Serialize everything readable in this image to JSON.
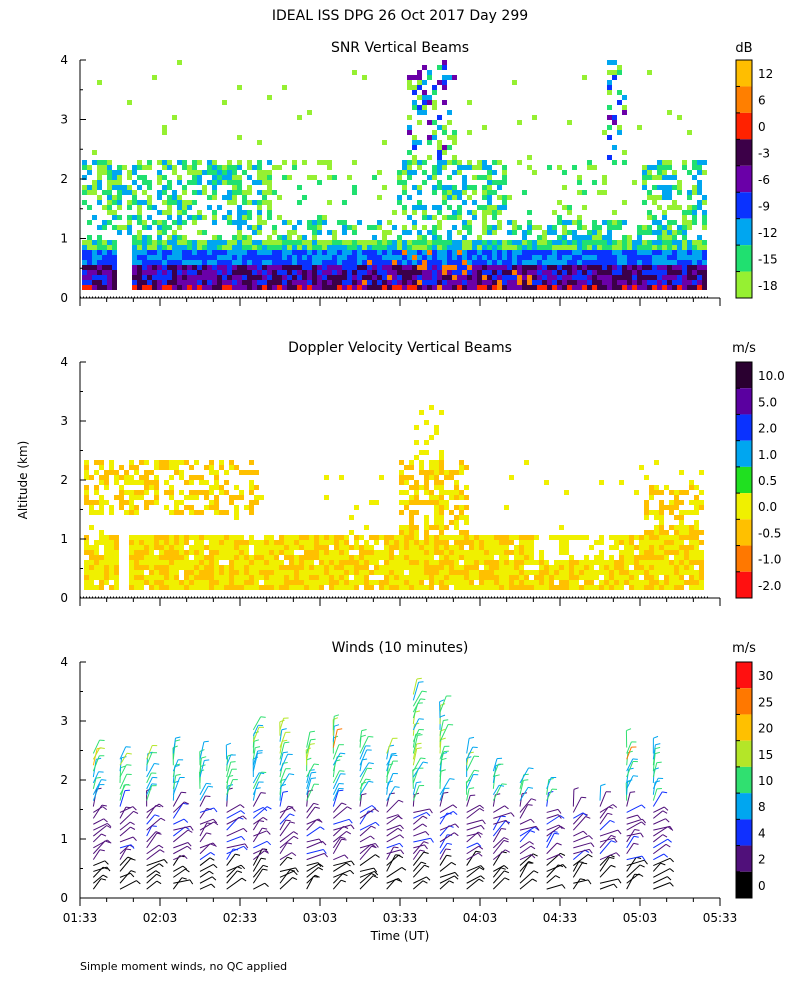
{
  "figure": {
    "title": "IDEAL ISS DPG  26 Oct 2017 Day 299",
    "ylabel": "Altitude (km)",
    "xlabel": "Time (UT)",
    "footnote": "Simple moment winds, no QC applied",
    "time_ticks": [
      "01:33",
      "02:03",
      "02:33",
      "03:03",
      "03:33",
      "04:03",
      "04:33",
      "05:03",
      "05:33"
    ],
    "altitude_ticks": [
      "0",
      "1",
      "2",
      "3",
      "4"
    ]
  },
  "chart_data": [
    {
      "type": "heatmap",
      "title": "SNR Vertical Beams",
      "units": "dB",
      "xlabel": "Time (UT)",
      "ylabel": "Altitude (km)",
      "xlim": [
        "01:33",
        "05:33"
      ],
      "ylim": [
        0,
        4
      ],
      "colorbar": {
        "labels": [
          "12",
          "6",
          "0",
          "-3",
          "-6",
          "-9",
          "-12",
          "-15",
          "-18"
        ],
        "colors": [
          "#ffbe00",
          "#ff7f00",
          "#ff2200",
          "#3c0048",
          "#6a00a8",
          "#0a32ff",
          "#00a6f0",
          "#20e070",
          "#96f032"
        ]
      },
      "features": [
        {
          "altitude_range_km": [
            0.1,
            0.9
          ],
          "description": "strong continuous boundary-layer echo"
        },
        {
          "altitude_range_km": [
            1.5,
            2.3
          ],
          "description": "patchy elevated layer"
        },
        {
          "altitude_range_km": [
            3.0,
            3.8
          ],
          "description": "isolated high echoes near 03:55 and 04:40"
        }
      ]
    },
    {
      "type": "heatmap",
      "title": "Doppler Velocity Vertical Beams",
      "units": "m/s",
      "xlabel": "Time (UT)",
      "ylabel": "Altitude (km)",
      "xlim": [
        "01:33",
        "05:33"
      ],
      "ylim": [
        0,
        4
      ],
      "colorbar": {
        "labels": [
          "10.0",
          "5.0",
          "2.0",
          "1.0",
          "0.5",
          "0.0",
          "-0.5",
          "-1.0",
          "-2.0"
        ],
        "colors": [
          "#2a0030",
          "#5a00a0",
          "#0a32ff",
          "#00a6f0",
          "#20e020",
          "#f0f000",
          "#ffc000",
          "#ff7800",
          "#ff1010"
        ]
      }
    },
    {
      "type": "wind_barbs",
      "title": "Winds (10 minutes)",
      "units": "m/s",
      "xlabel": "Time (UT)",
      "ylabel": "Altitude (km)",
      "xlim": [
        "01:33",
        "05:33"
      ],
      "ylim": [
        0,
        4
      ],
      "colorbar": {
        "labels": [
          "30",
          "25",
          "20",
          "15",
          "10",
          "8",
          "4",
          "2",
          "0"
        ],
        "colors": [
          "#ff1010",
          "#ff7800",
          "#ffc000",
          "#b4e628",
          "#30e070",
          "#00a6f0",
          "#1030ff",
          "#50107a",
          "#000000"
        ]
      },
      "profile_times": [
        "01:38",
        "01:48",
        "01:58",
        "02:08",
        "02:18",
        "02:28",
        "02:38",
        "02:48",
        "02:58",
        "03:08",
        "03:18",
        "03:28",
        "03:38",
        "03:48",
        "03:58",
        "04:08",
        "04:18",
        "04:28",
        "04:38",
        "04:48",
        "04:58",
        "05:08"
      ],
      "profile_top_km": [
        2.5,
        2.4,
        2.4,
        2.5,
        2.4,
        2.4,
        2.9,
        2.9,
        2.6,
        2.9,
        2.7,
        2.5,
        3.5,
        3.2,
        2.5,
        2.2,
        2.0,
        1.9,
        1.6,
        1.7,
        2.6,
        2.5
      ]
    }
  ]
}
